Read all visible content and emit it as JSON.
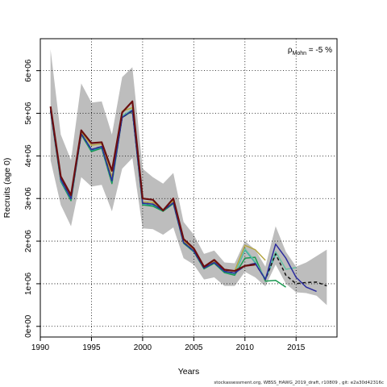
{
  "chart_data": {
    "type": "line",
    "xlabel": "Years",
    "ylabel": "Recruits (age 0)",
    "annotation": {
      "symbol": "ρ",
      "subscript": "Mohn",
      "text": " = -5 %"
    },
    "xlim": [
      1990,
      2019
    ],
    "ylim": [
      -250000,
      6750000
    ],
    "x_ticks": [
      1990,
      1995,
      2000,
      2005,
      2010,
      2015
    ],
    "y_ticks": [
      0,
      1000000,
      2000000,
      3000000,
      4000000,
      5000000,
      6000000
    ],
    "y_tick_labels": [
      "0e+00",
      "1e+06",
      "2e+06",
      "3e+06",
      "4e+06",
      "5e+06",
      "6e+06"
    ],
    "grid": true,
    "confidence_band": {
      "x": [
        1991,
        1992,
        1993,
        1994,
        1995,
        1996,
        1997,
        1998,
        1999,
        2000,
        2001,
        2002,
        2003,
        2004,
        2005,
        2006,
        2007,
        2008,
        2009,
        2010,
        2011,
        2012,
        2013,
        2014,
        2015,
        2016,
        2017,
        2018
      ],
      "upper": [
        6500000,
        4500000,
        3900000,
        5700000,
        5250000,
        5280000,
        4500000,
        5850000,
        6080000,
        3700000,
        3500000,
        3350000,
        3600000,
        2450000,
        2150000,
        1700000,
        1780000,
        1500000,
        1480000,
        2000000,
        1800000,
        1400000,
        2350000,
        1750000,
        1400000,
        1500000,
        1650000,
        1800000
      ],
      "lower": [
        3900000,
        2850000,
        2350000,
        3500000,
        3280000,
        3320000,
        2700000,
        3700000,
        3950000,
        2300000,
        2280000,
        2150000,
        2320000,
        1600000,
        1450000,
        1100000,
        1150000,
        950000,
        950000,
        1280000,
        1150000,
        940000,
        1450000,
        1000000,
        800000,
        780000,
        720000,
        500000
      ]
    },
    "series": [
      {
        "color": "#1a9850",
        "x": [
          1991,
          1992,
          1993,
          1994,
          1995,
          1996,
          1997,
          1998,
          1999,
          2000,
          2001,
          2002,
          2003,
          2004,
          2005,
          2006,
          2007,
          2008,
          2009,
          2010,
          2011,
          2012,
          2013,
          2014
        ],
        "values": [
          5050000,
          3400000,
          2950000,
          4500000,
          4100000,
          4180000,
          3350000,
          4900000,
          5050000,
          2850000,
          2820000,
          2700000,
          2880000,
          1950000,
          1750000,
          1350000,
          1480000,
          1260000,
          1200000,
          1600000,
          1620000,
          1060000,
          1080000,
          920000
        ]
      },
      {
        "color": "#1b9e9e",
        "x": [
          1991,
          1992,
          1993,
          1994,
          1995,
          1996,
          1997,
          1998,
          1999,
          2000,
          2001,
          2002,
          2003,
          2004,
          2005,
          2006,
          2007,
          2008,
          2009,
          2010,
          2011,
          2012,
          2013
        ],
        "values": [
          5080000,
          3420000,
          2980000,
          4520000,
          4130000,
          4200000,
          3400000,
          4920000,
          5070000,
          2870000,
          2850000,
          2720000,
          2900000,
          1970000,
          1760000,
          1370000,
          1500000,
          1280000,
          1230000,
          1800000,
          1500000,
          1100000,
          1700000
        ]
      },
      {
        "color": "#66c2a5",
        "x": [
          1991,
          1992,
          1993,
          1994,
          1995,
          1996,
          1997,
          1998,
          1999,
          2000,
          2001,
          2002,
          2003,
          2004,
          2005,
          2006,
          2007,
          2008,
          2009,
          2010,
          2011,
          2012,
          2013,
          2014,
          2015
        ],
        "values": [
          5100000,
          3440000,
          3000000,
          4540000,
          4150000,
          4220000,
          3420000,
          4940000,
          5090000,
          2880000,
          2860000,
          2730000,
          2910000,
          1980000,
          1770000,
          1380000,
          1510000,
          1290000,
          1240000,
          1820000,
          1520000,
          1120000,
          1750000,
          1340000,
          1380000
        ]
      },
      {
        "color": "#b5a642",
        "x": [
          1991,
          1992,
          1993,
          1994,
          1995,
          1996,
          1997,
          1998,
          1999,
          2000,
          2001,
          2002,
          2003,
          2004,
          2005,
          2006,
          2007,
          2008,
          2009,
          2010,
          2011,
          2012
        ],
        "values": [
          5120000,
          3460000,
          3020000,
          4560000,
          4250000,
          4280000,
          3500000,
          5050000,
          5130000,
          2920000,
          2910000,
          2740000,
          2950000,
          2000000,
          1790000,
          1400000,
          1530000,
          1310000,
          1300000,
          1900000,
          1800000,
          1550000
        ]
      },
      {
        "color": "#111111",
        "dash": true,
        "x": [
          1991,
          1992,
          1993,
          1994,
          1995,
          1996,
          1997,
          1998,
          1999,
          2000,
          2001,
          2002,
          2003,
          2004,
          2005,
          2006,
          2007,
          2008,
          2009,
          2010,
          2011,
          2012,
          2013,
          2014,
          2015,
          2016,
          2017,
          2018
        ],
        "values": [
          5060000,
          3450000,
          3000000,
          4520000,
          4150000,
          4220000,
          3420000,
          4900000,
          5060000,
          2890000,
          2870000,
          2720000,
          2900000,
          1970000,
          1770000,
          1370000,
          1500000,
          1290000,
          1250000,
          1420000,
          1480000,
          1100000,
          1700000,
          1200000,
          1000000,
          1030000,
          1040000,
          950000
        ]
      },
      {
        "color": "#2c2c9e",
        "x": [
          1991,
          1992,
          1993,
          1994,
          1995,
          1996,
          1997,
          1998,
          1999,
          2000,
          2001,
          2002,
          2003,
          2004,
          2005,
          2006,
          2007,
          2008,
          2009,
          2010,
          2011,
          2012,
          2013,
          2014,
          2015,
          2016,
          2017
        ],
        "values": [
          5070000,
          3450000,
          3000000,
          4520000,
          4150000,
          4220000,
          3420000,
          4900000,
          5070000,
          2890000,
          2870000,
          2720000,
          2900000,
          1970000,
          1770000,
          1370000,
          1500000,
          1290000,
          1250000,
          1420000,
          1480000,
          1100000,
          1930000,
          1600000,
          1150000,
          920000,
          820000
        ]
      },
      {
        "color": "#6b0f0f",
        "x": [
          1991,
          1992,
          1993,
          1994,
          1995,
          1996,
          1997,
          1998,
          1999,
          2000,
          2001,
          2002,
          2003,
          2004,
          2005,
          2006,
          2007,
          2008,
          2009,
          2010,
          2011
        ],
        "values": [
          5160000,
          3520000,
          3080000,
          4600000,
          4300000,
          4320000,
          3650000,
          5020000,
          5280000,
          3000000,
          2970000,
          2720000,
          3000000,
          2050000,
          1830000,
          1400000,
          1560000,
          1330000,
          1300000,
          1420000,
          1450000
        ]
      }
    ]
  },
  "footer": "stockassessment.org,  WBSS_HAWG_2019_draft,  r10809 ,  git:  e2a30d42316c"
}
